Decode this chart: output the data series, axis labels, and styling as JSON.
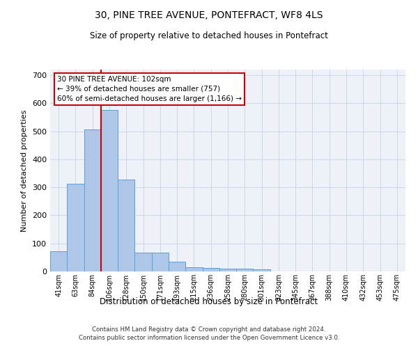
{
  "title": "30, PINE TREE AVENUE, PONTEFRACT, WF8 4LS",
  "subtitle": "Size of property relative to detached houses in Pontefract",
  "xlabel": "Distribution of detached houses by size in Pontefract",
  "ylabel": "Number of detached properties",
  "categories": [
    "41sqm",
    "63sqm",
    "84sqm",
    "106sqm",
    "128sqm",
    "150sqm",
    "171sqm",
    "193sqm",
    "215sqm",
    "236sqm",
    "258sqm",
    "280sqm",
    "301sqm",
    "323sqm",
    "345sqm",
    "367sqm",
    "388sqm",
    "410sqm",
    "432sqm",
    "453sqm",
    "475sqm"
  ],
  "values": [
    72,
    312,
    506,
    576,
    328,
    67,
    67,
    36,
    16,
    12,
    10,
    10,
    7,
    0,
    0,
    0,
    0,
    0,
    0,
    0,
    0
  ],
  "bar_color": "#aec6e8",
  "bar_edge_color": "#5a9fd4",
  "grid_color": "#d0d8e8",
  "background_color": "#eef2f8",
  "annotation_text": "30 PINE TREE AVENUE: 102sqm\n← 39% of detached houses are smaller (757)\n60% of semi-detached houses are larger (1,166) →",
  "annotation_box_color": "#ffffff",
  "annotation_box_edge": "#cc0000",
  "vline_color": "#cc0000",
  "footer": "Contains HM Land Registry data © Crown copyright and database right 2024.\nContains public sector information licensed under the Open Government Licence v3.0.",
  "ylim": [
    0,
    720
  ],
  "yticks": [
    0,
    100,
    200,
    300,
    400,
    500,
    600,
    700
  ],
  "vline_xindex": 2.5
}
